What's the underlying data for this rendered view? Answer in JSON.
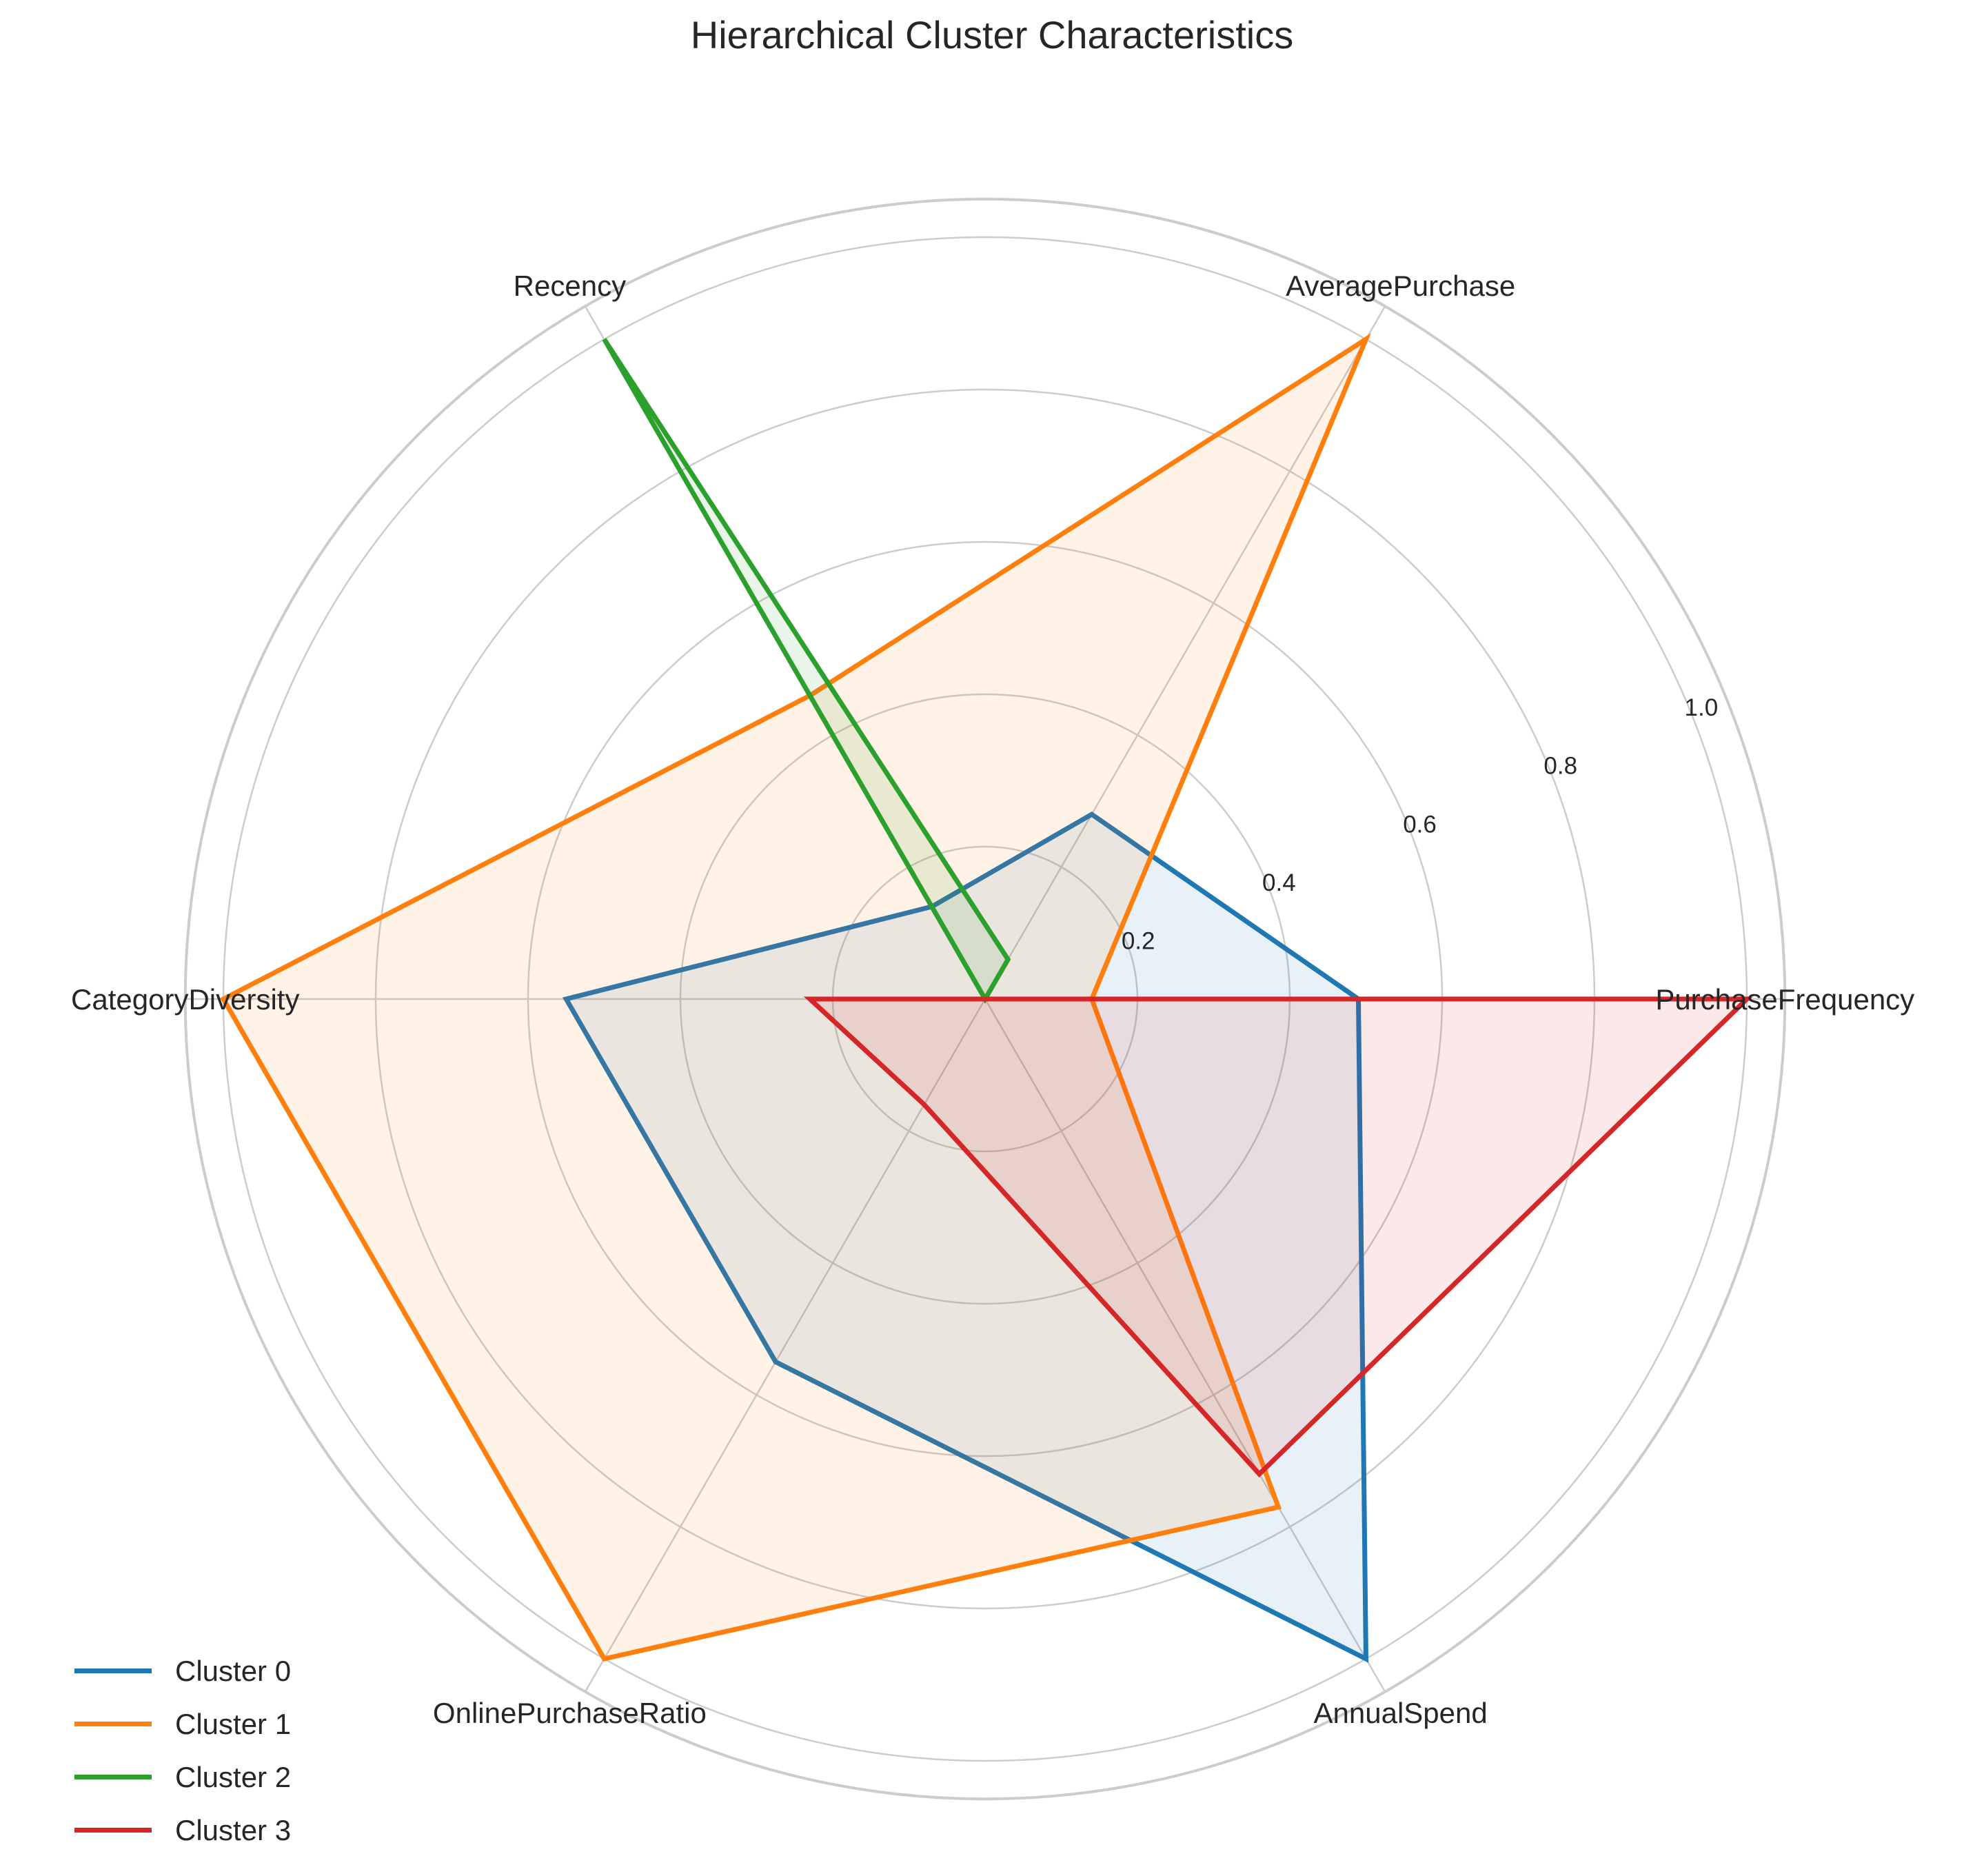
{
  "chart_data": {
    "type": "radar",
    "title": "Hierarchical Cluster Characteristics",
    "axes": [
      "PurchaseFrequency",
      "AveragePurchase",
      "Recency",
      "CategoryDiversity",
      "OnlinePurchaseRatio",
      "AnnualSpend"
    ],
    "rlim": [
      0,
      1.05
    ],
    "r_ticks": [
      0.2,
      0.4,
      0.6,
      0.8,
      1.0
    ],
    "r_tick_labels": [
      "0.2",
      "0.4",
      "0.6",
      "0.8",
      "1.0"
    ],
    "grid": true,
    "legend_position": "lower-left",
    "series": [
      {
        "name": "Cluster 0",
        "color": "#1f77b4",
        "values": [
          0.49,
          0.28,
          0.14,
          0.55,
          0.55,
          1.0
        ]
      },
      {
        "name": "Cluster 1",
        "color": "#ff7f0e",
        "values": [
          0.14,
          1.0,
          0.46,
          1.0,
          1.0,
          0.77
        ]
      },
      {
        "name": "Cluster 2",
        "color": "#2ca02c",
        "values": [
          0.0,
          0.06,
          1.0,
          0.0,
          0.0,
          0.0
        ]
      },
      {
        "name": "Cluster 3",
        "color": "#d62728",
        "values": [
          1.0,
          0.0,
          0.0,
          0.23,
          0.16,
          0.72
        ]
      }
    ]
  }
}
